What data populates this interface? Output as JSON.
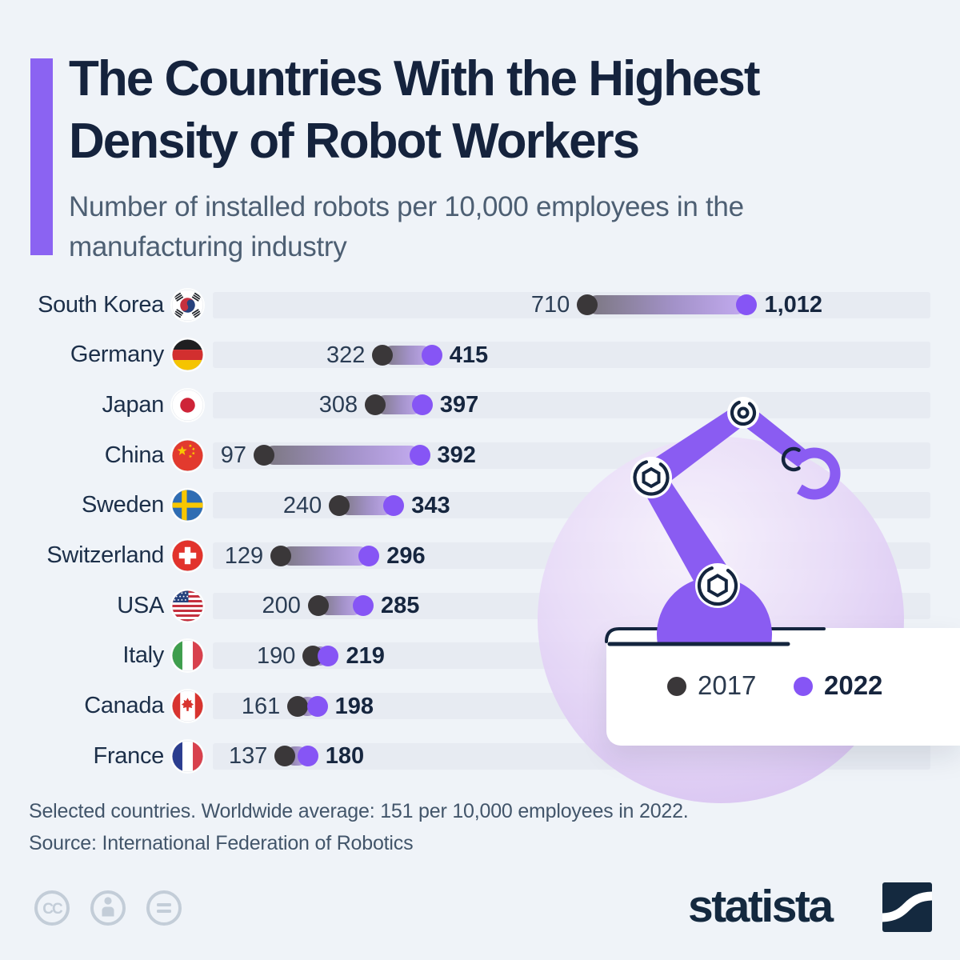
{
  "header": {
    "title_line1": "The Countries With the Highest",
    "title_line2": "Density of Robot Workers",
    "subtitle": "Number of installed robots per 10,000 employees in the manufacturing industry"
  },
  "chart_data": {
    "type": "dumbbell-bar",
    "title": "The Countries With the Highest Density of Robot Workers",
    "subtitle": "Number of installed robots per 10,000 employees in the manufacturing industry",
    "categories": [
      "South Korea",
      "Germany",
      "Japan",
      "China",
      "Sweden",
      "Switzerland",
      "USA",
      "Italy",
      "Canada",
      "France"
    ],
    "flags": [
      "kr",
      "de",
      "jp",
      "cn",
      "se",
      "ch",
      "us",
      "it",
      "ca",
      "fr"
    ],
    "series": [
      {
        "name": "2017",
        "color": "#3a3739",
        "values": [
          710,
          322,
          308,
          97,
          240,
          129,
          200,
          190,
          161,
          137
        ],
        "display": [
          "710",
          "322",
          "308",
          "97",
          "240",
          "129",
          "200",
          "190",
          "161",
          "137"
        ]
      },
      {
        "name": "2022",
        "color": "#8655f5",
        "values": [
          1012,
          415,
          397,
          392,
          343,
          296,
          285,
          219,
          198,
          180
        ],
        "display": [
          "1,012",
          "415",
          "397",
          "392",
          "343",
          "296",
          "285",
          "219",
          "198",
          "180"
        ]
      }
    ],
    "xlim": [
      0,
      1360
    ],
    "grid": false,
    "legend_position": "bottom-right"
  },
  "legend": {
    "items": [
      {
        "label": "2017",
        "color": "#3a3739",
        "bold": false
      },
      {
        "label": "2022",
        "color": "#8655f5",
        "bold": true
      }
    ]
  },
  "footer": {
    "note": "Selected countries. Worldwide average: 151 per 10,000 employees in 2022.",
    "source": "Source: International Federation of Robotics"
  },
  "branding": {
    "logo_text": "statista",
    "license_icons": [
      "cc-icon",
      "attribution-icon",
      "equals-icon"
    ]
  },
  "colors": {
    "background": "#eff3f8",
    "track": "#e7ebf2",
    "accent_bar": "#8b63f2",
    "title": "#15233d",
    "subtitle": "#4d5f73",
    "dot_2017": "#3a3739",
    "dot_2022": "#8655f5",
    "robot_purple": "#8a5cf2",
    "outline_navy": "#14253e"
  }
}
